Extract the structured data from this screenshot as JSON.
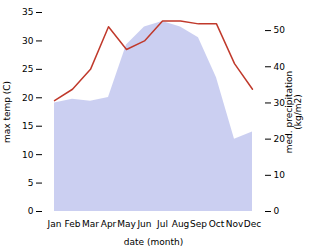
{
  "chart_data": {
    "type": "line",
    "categories": [
      "Jan",
      "Feb",
      "Mar",
      "Apr",
      "May",
      "Jun",
      "Jul",
      "Aug",
      "Sep",
      "Oct",
      "Nov",
      "Dec"
    ],
    "series": [
      {
        "type": "area",
        "axis": "y2",
        "color": "#c5caf0",
        "values": [
          30.0,
          31.0,
          30.5,
          31.5,
          46.0,
          51.0,
          52.5,
          51.0,
          48.0,
          37.0,
          20.0,
          22.0
        ]
      },
      {
        "type": "line",
        "color": "#c0392b",
        "values": [
          19.5,
          21.5,
          25.0,
          32.5,
          28.5,
          30.0,
          33.5,
          33.5,
          33.0,
          33.0,
          26.0,
          21.5
        ]
      }
    ],
    "xlabel": "date (month)",
    "ylabel": "max temp (C)",
    "y2label": "med. precipitation\n(kg/m2)",
    "ylim": [
      0,
      35
    ],
    "yticks": [
      0,
      5,
      10,
      15,
      20,
      25,
      30,
      35
    ],
    "y2lim": [
      0,
      55
    ],
    "y2ticks": [
      0,
      10,
      20,
      30,
      40,
      50
    ]
  }
}
